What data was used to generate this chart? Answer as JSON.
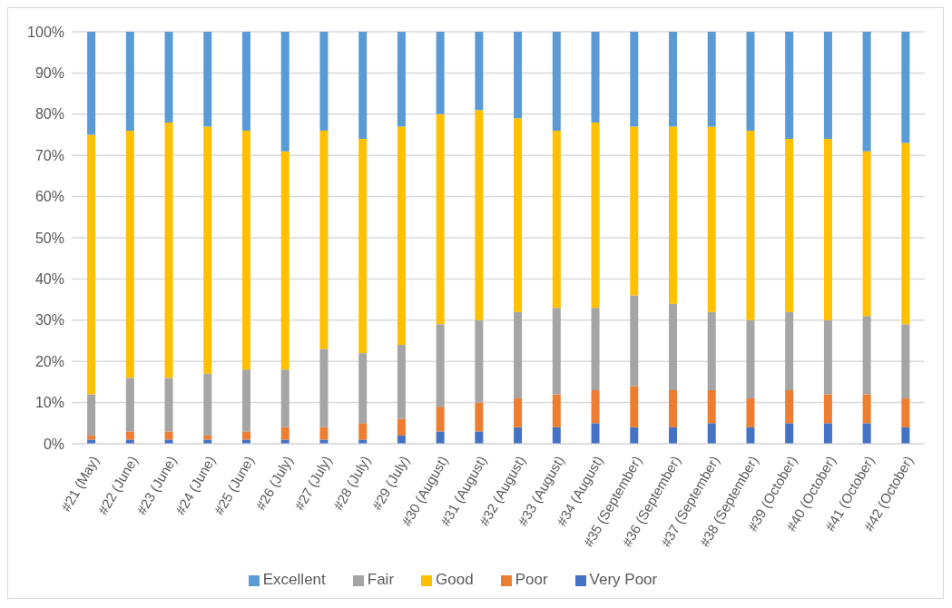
{
  "chart_data": {
    "type": "bar",
    "stacked": true,
    "grid": "y",
    "legend": "bottom",
    "categories": [
      "#21 (May)",
      "#22 (June)",
      "#23 (June)",
      "#24 (June)",
      "#25 (June)",
      "#26 (July)",
      "#27 (July)",
      "#28 (July)",
      "#29 (July)",
      "#30 (August)",
      "#31 (August)",
      "#32 (August)",
      "#33 (August)",
      "#34 (August)",
      "#35 (September)",
      "#36 (September)",
      "#37 (September)",
      "#38 (September)",
      "#39 (October)",
      "#40 (October)",
      "#41 (October)",
      "#42 (October)"
    ],
    "ylim": [
      0,
      100
    ],
    "yticks": [
      {
        "value": 0,
        "label": "0%"
      },
      {
        "value": 10,
        "label": "10%"
      },
      {
        "value": 20,
        "label": "20%"
      },
      {
        "value": 30,
        "label": "30%"
      },
      {
        "value": 40,
        "label": "40%"
      },
      {
        "value": 50,
        "label": "50%"
      },
      {
        "value": 60,
        "label": "60%"
      },
      {
        "value": 70,
        "label": "70%"
      },
      {
        "value": 80,
        "label": "80%"
      },
      {
        "value": 90,
        "label": "90%"
      },
      {
        "value": 100,
        "label": "100%"
      }
    ],
    "series": [
      {
        "name": "Very Poor",
        "color": "#4472c4",
        "values": [
          1,
          1,
          1,
          1,
          1,
          1,
          1,
          1,
          2,
          3,
          3,
          4,
          4,
          5,
          4,
          4,
          5,
          4,
          5,
          5,
          5,
          4
        ]
      },
      {
        "name": "Poor",
        "color": "#ed7d31",
        "values": [
          1,
          2,
          2,
          1,
          2,
          3,
          3,
          4,
          4,
          6,
          7,
          7,
          8,
          8,
          10,
          9,
          8,
          7,
          8,
          7,
          7,
          7
        ]
      },
      {
        "name": "Fair",
        "color": "#a5a5a5",
        "values": [
          10,
          13,
          13,
          15,
          15,
          14,
          19,
          17,
          18,
          20,
          20,
          21,
          21,
          20,
          22,
          21,
          19,
          19,
          19,
          18,
          19,
          18
        ]
      },
      {
        "name": "Good",
        "color": "#ffc000",
        "values": [
          63,
          60,
          62,
          60,
          58,
          53,
          53,
          52,
          53,
          51,
          51,
          47,
          43,
          45,
          41,
          43,
          45,
          46,
          42,
          44,
          40,
          44
        ]
      },
      {
        "name": "Excellent",
        "color": "#5b9bd5",
        "values": [
          25,
          24,
          22,
          23,
          24,
          29,
          24,
          26,
          23,
          20,
          19,
          21,
          24,
          22,
          23,
          23,
          23,
          24,
          26,
          26,
          29,
          27
        ]
      }
    ]
  }
}
